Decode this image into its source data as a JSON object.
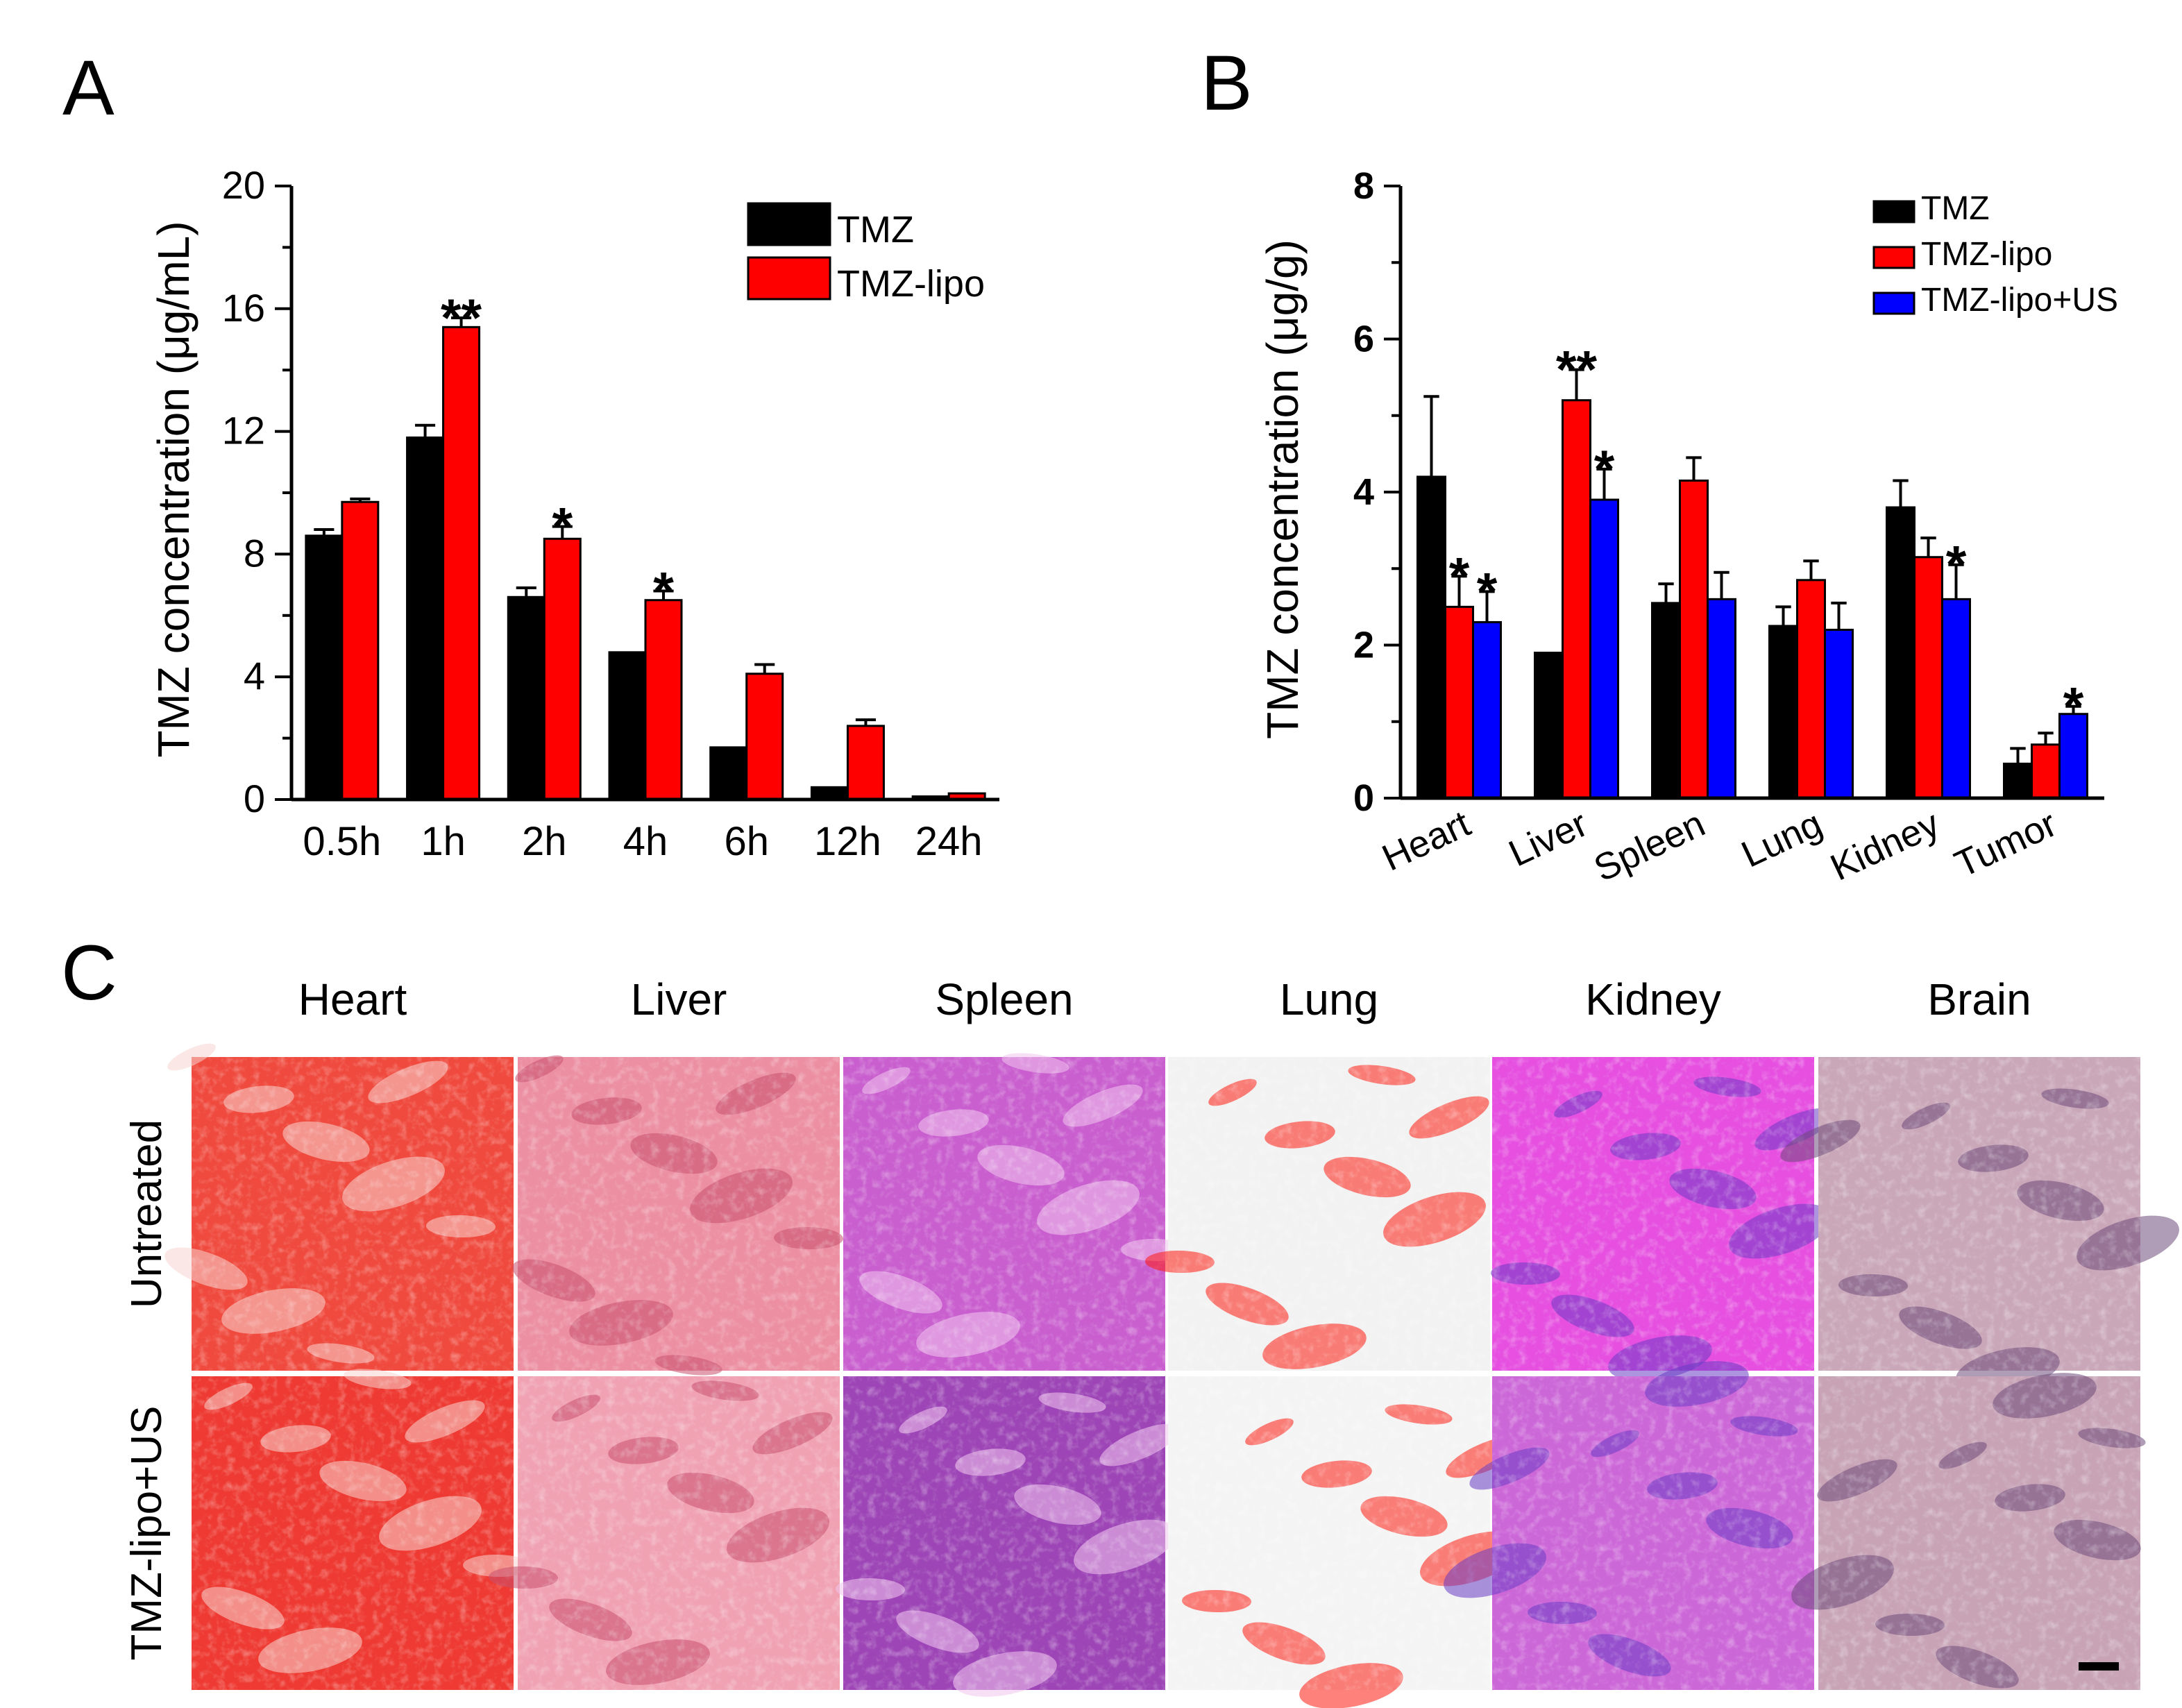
{
  "panels": {
    "a": {
      "letter": "A"
    },
    "b": {
      "letter": "B"
    },
    "c": {
      "letter": "C"
    }
  },
  "chart_data": [
    {
      "panel": "A",
      "type": "bar",
      "ylabel": "TMZ concentration (μg/mL)",
      "xlabel": "",
      "ylim": [
        0,
        20
      ],
      "yticks": [
        0,
        4,
        8,
        12,
        16,
        20
      ],
      "categories": [
        "0.5h",
        "1h",
        "2h",
        "4h",
        "6h",
        "12h",
        "24h"
      ],
      "series": [
        {
          "name": "TMZ",
          "color": "#000000",
          "values": [
            8.6,
            11.8,
            6.6,
            4.8,
            1.7,
            0.4,
            0.1
          ],
          "errors": [
            0.2,
            0.4,
            0.3,
            0.0,
            0.0,
            0.0,
            0.0
          ]
        },
        {
          "name": "TMZ-lipo",
          "color": "#ff0000",
          "values": [
            9.7,
            15.4,
            8.5,
            6.5,
            4.1,
            2.4,
            0.2
          ],
          "errors": [
            0.1,
            0.3,
            0.4,
            0.3,
            0.3,
            0.2,
            0.0
          ]
        }
      ],
      "significance": [
        {
          "category": "1h",
          "label": "**"
        },
        {
          "category": "2h",
          "label": "*"
        },
        {
          "category": "4h",
          "label": "*"
        }
      ],
      "legend": "top-right"
    },
    {
      "panel": "B",
      "type": "bar",
      "ylabel": "TMZ concentration (μg/g)",
      "xlabel": "",
      "ylim": [
        0,
        8
      ],
      "yticks": [
        0,
        2,
        4,
        6,
        8
      ],
      "categories": [
        "Heart",
        "Liver",
        "Spleen",
        "Lung",
        "Kidney",
        "Tumor"
      ],
      "series": [
        {
          "name": "TMZ",
          "color": "#000000",
          "values": [
            4.2,
            1.9,
            2.55,
            2.25,
            3.8,
            0.45
          ],
          "errors": [
            1.05,
            0.0,
            0.25,
            0.25,
            0.35,
            0.2
          ]
        },
        {
          "name": "TMZ-lipo",
          "color": "#ff0000",
          "values": [
            2.5,
            5.2,
            4.15,
            2.85,
            3.15,
            0.7
          ],
          "errors": [
            0.4,
            0.4,
            0.3,
            0.25,
            0.25,
            0.15
          ]
        },
        {
          "name": "TMZ-lipo+US",
          "color": "#0000ff",
          "values": [
            2.3,
            3.9,
            2.6,
            2.2,
            2.6,
            1.1
          ],
          "errors": [
            0.4,
            0.4,
            0.35,
            0.35,
            0.45,
            0.1
          ]
        }
      ],
      "significance": [
        {
          "category": "Heart",
          "series": "TMZ-lipo",
          "label": "*"
        },
        {
          "category": "Heart",
          "series": "TMZ-lipo+US",
          "label": "*"
        },
        {
          "category": "Liver",
          "series": "TMZ-lipo",
          "label": "**"
        },
        {
          "category": "Liver",
          "series": "TMZ-lipo+US",
          "label": "*"
        },
        {
          "category": "Kidney",
          "series": "TMZ-lipo+US",
          "label": "*"
        },
        {
          "category": "Tumor",
          "series": "TMZ-lipo+US",
          "label": "*"
        }
      ],
      "legend": "top-right"
    }
  ],
  "histology": {
    "columns": [
      "Heart",
      "Liver",
      "Spleen",
      "Lung",
      "Kidney",
      "Brain"
    ],
    "rows": [
      "Untreated",
      "TMZ-lipo+US"
    ],
    "tile_colors": {
      "Heart": [
        "#f04a3e",
        "#ee3a32"
      ],
      "Liver": [
        "#ec8fa2",
        "#f0a2b3"
      ],
      "Spleen": [
        "#c95fcf",
        "#9d45b6"
      ],
      "Lung": [
        "#f2f2f2",
        "#f4f4f4"
      ],
      "Kidney": [
        "#e64fe0",
        "#cc67d8"
      ],
      "Brain": [
        "#c9a7b8",
        "#c7a3b5"
      ]
    },
    "tile_accent_colors": {
      "Heart": "#f7d4d0",
      "Liver": "#c9516e",
      "Spleen": "#f0c6ef",
      "Lung": "#ff1a0f",
      "Kidney": "#6a3dc4",
      "Brain": "#6d4a7a"
    }
  }
}
